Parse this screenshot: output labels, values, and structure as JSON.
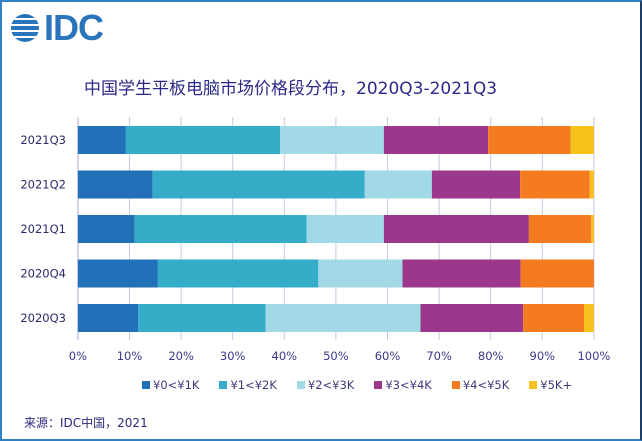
{
  "logo": {
    "text": "IDC",
    "icon": "idc-globe-icon"
  },
  "chart_data": {
    "type": "bar",
    "orientation": "horizontal",
    "stacked": true,
    "percent_stacked": true,
    "title": "中国学生平板电脑市场价格段分布，2020Q3-2021Q3",
    "categories": [
      "2021Q3",
      "2021Q2",
      "2021Q1",
      "2020Q4",
      "2020Q3"
    ],
    "series": [
      {
        "name": "¥0<¥1K",
        "color": "#2271b8",
        "values": [
          9.3,
          14.5,
          11.0,
          15.5,
          11.7
        ]
      },
      {
        "name": "¥1<¥2K",
        "color": "#35acc8",
        "values": [
          29.9,
          41.1,
          33.3,
          31.1,
          24.7
        ]
      },
      {
        "name": "¥2<¥3K",
        "color": "#a2d9e6",
        "values": [
          20.1,
          13.0,
          15.0,
          16.3,
          30.0
        ]
      },
      {
        "name": "¥3<¥4K",
        "color": "#9b388c",
        "values": [
          20.2,
          17.1,
          28.1,
          22.9,
          19.9
        ]
      },
      {
        "name": "¥4<¥5K",
        "color": "#f47b20",
        "values": [
          16.0,
          13.5,
          12.1,
          14.2,
          11.8
        ]
      },
      {
        "name": "¥5K+",
        "color": "#f6c21b",
        "values": [
          4.5,
          0.8,
          0.5,
          0.0,
          1.9
        ]
      }
    ],
    "xlabel": "",
    "ylabel": "",
    "xlim": [
      0,
      100
    ],
    "xticks": [
      "0%",
      "10%",
      "20%",
      "30%",
      "40%",
      "50%",
      "60%",
      "70%",
      "80%",
      "90%",
      "100%"
    ],
    "grid": true,
    "legend_position": "bottom"
  },
  "source": "来源：IDC中国，2021"
}
